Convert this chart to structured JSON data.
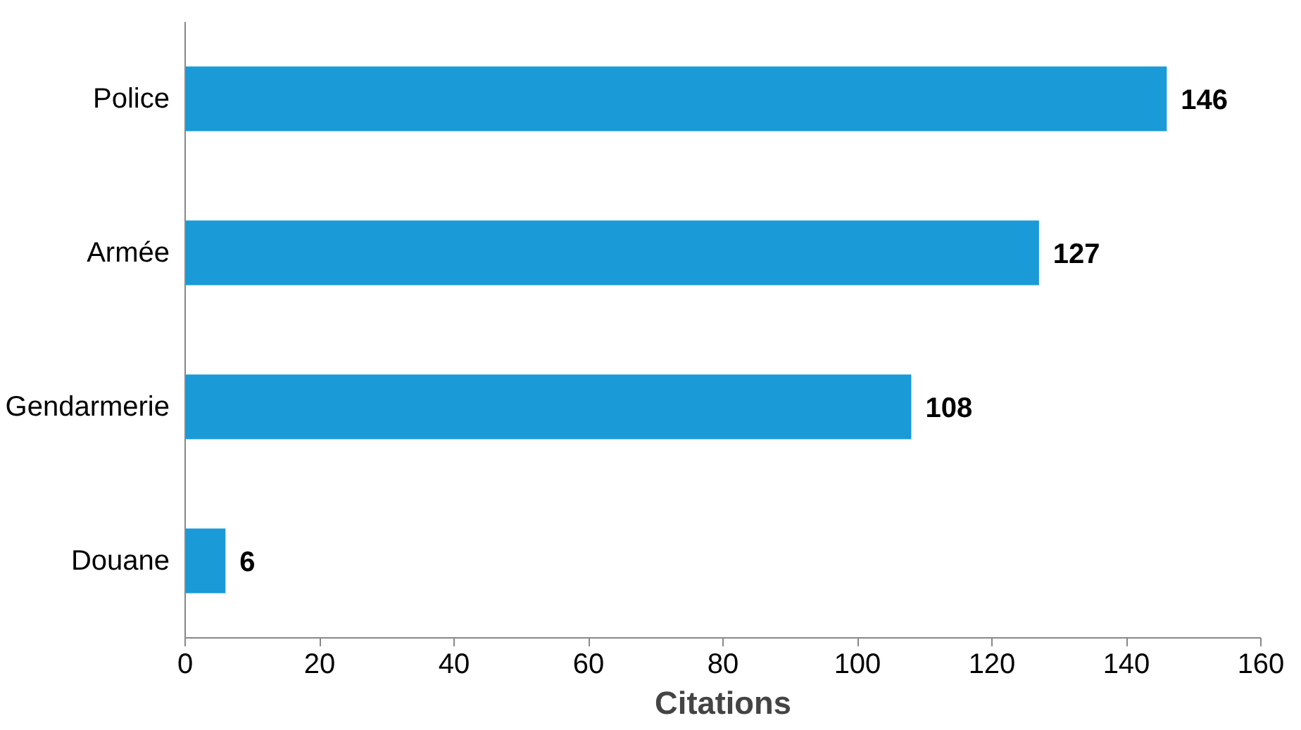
{
  "chart_data": {
    "type": "bar",
    "orientation": "horizontal",
    "xlabel": "Citations",
    "categories": [
      "Police",
      "Armée",
      "Gendarmerie",
      "Douane"
    ],
    "values": [
      146,
      127,
      108,
      6
    ],
    "color": "#1a9ad6",
    "xlim": [
      0,
      160
    ],
    "xticks": [
      0,
      20,
      40,
      60,
      80,
      100,
      120,
      140,
      160
    ],
    "grid": false,
    "data_labels": true
  }
}
